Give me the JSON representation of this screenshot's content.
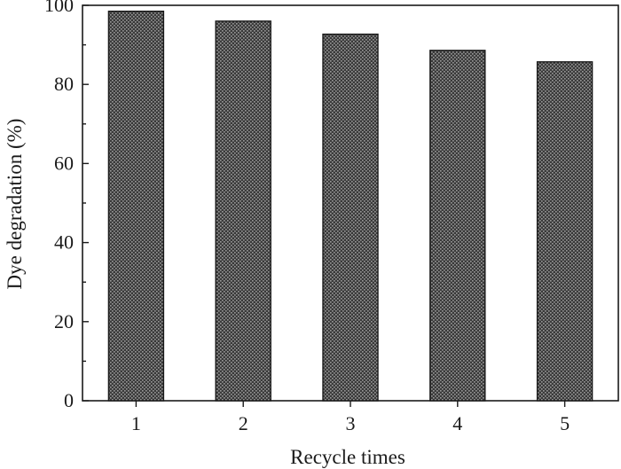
{
  "chart_data": {
    "type": "bar",
    "categories": [
      "1",
      "2",
      "3",
      "4",
      "5"
    ],
    "values": [
      98.5,
      96,
      92.7,
      88.6,
      85.7
    ],
    "xlabel": "Recycle times",
    "ylabel": "Dye degradation (%)",
    "ylim": [
      0,
      100
    ],
    "yticks": [
      "0",
      "20",
      "40",
      "60",
      "80",
      "100"
    ],
    "grid": false,
    "legend": "none",
    "bar_color": "#3a3a3a",
    "bar_pattern": "dotted"
  }
}
